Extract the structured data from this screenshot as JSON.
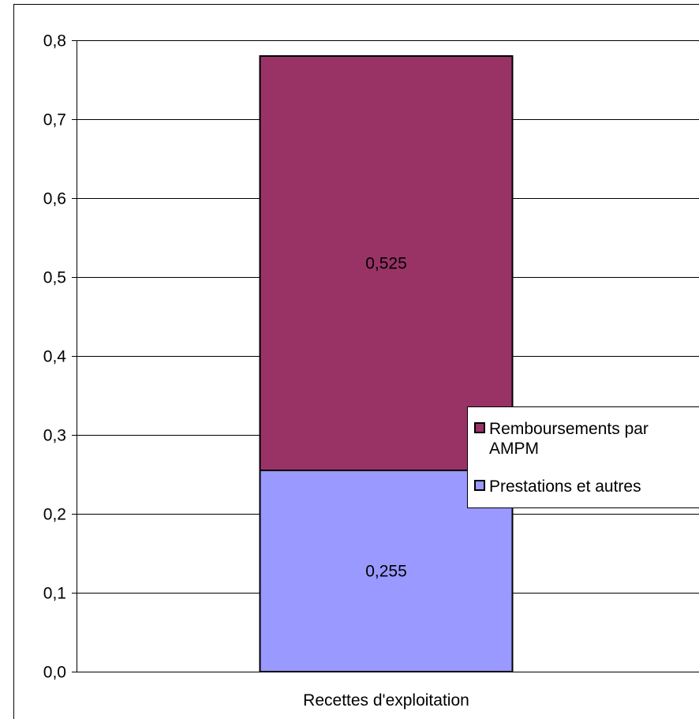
{
  "chart_data": {
    "type": "bar",
    "stacked": true,
    "title": "",
    "xlabel": "",
    "ylabel": "",
    "categories": [
      "Recettes d'exploitation"
    ],
    "series": [
      {
        "name": "Prestations et autres",
        "values": [
          0.255
        ],
        "value_labels": [
          "0,255"
        ],
        "color": "#9999ff"
      },
      {
        "name": "Remboursements par AMPM",
        "values": [
          0.525
        ],
        "value_labels": [
          "0,525"
        ],
        "color": "#993366"
      }
    ],
    "ylim": [
      0,
      0.8
    ],
    "yticks": [
      0,
      0.1,
      0.2,
      0.3,
      0.4,
      0.5,
      0.6,
      0.7,
      0.8
    ],
    "ytick_labels": [
      "0,0",
      "0,1",
      "0,2",
      "0,3",
      "0,4",
      "0,5",
      "0,6",
      "0,7",
      "0,8"
    ],
    "grid": true,
    "legend": {
      "placement": "right",
      "order": [
        "Remboursements par AMPM",
        "Prestations et autres"
      ],
      "lines": {
        "Remboursements par AMPM": [
          "Remboursements par",
          "AMPM"
        ],
        "Prestations et autres": [
          "Prestations et autres"
        ]
      }
    }
  }
}
